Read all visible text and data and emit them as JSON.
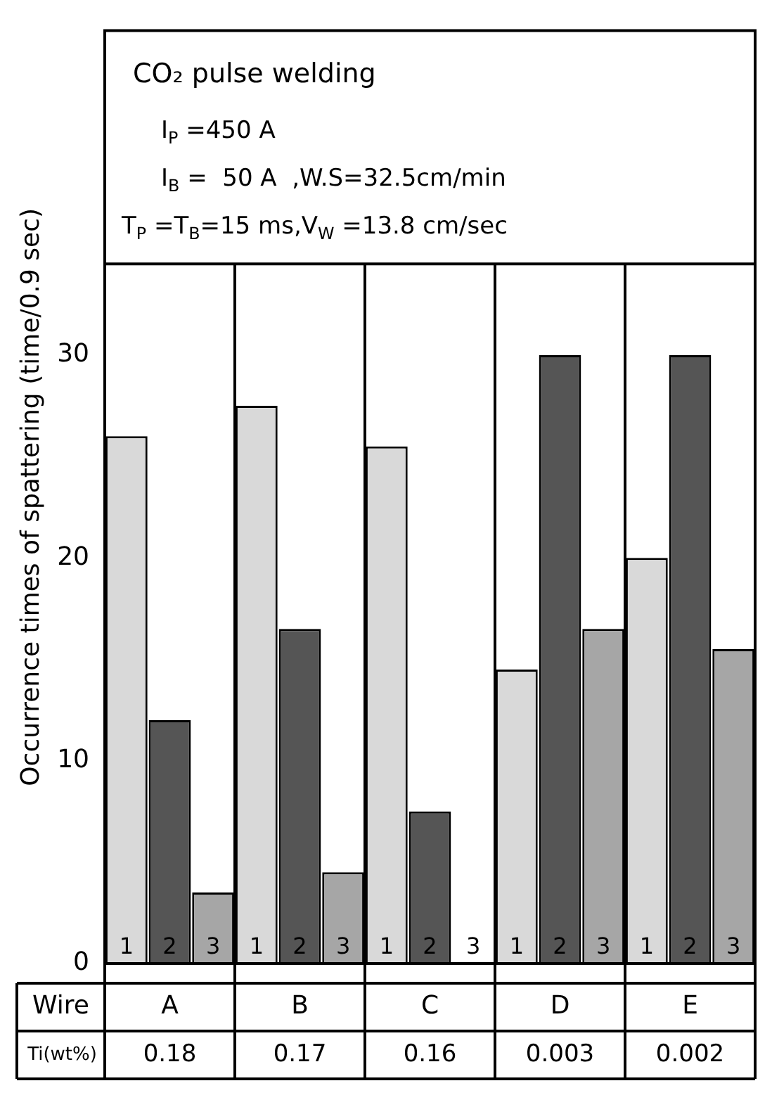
{
  "chart_data": {
    "type": "bar",
    "title": "CO₂ pulse welding",
    "xlabel": "Wire",
    "ylabel": "Occurrence times of spattering (time/0.9 sec)",
    "categories": [
      "A",
      "B",
      "C",
      "D",
      "E"
    ],
    "series": [
      {
        "name": "1",
        "color": "#d9d9d9",
        "values": [
          26,
          27.5,
          25.5,
          14.5,
          20
        ]
      },
      {
        "name": "2",
        "color": "#555555",
        "values": [
          12,
          16.5,
          7.5,
          30,
          30
        ]
      },
      {
        "name": "3",
        "color": "#a6a6a6",
        "values": [
          3.5,
          4.5,
          0,
          16.5,
          15.5
        ]
      }
    ],
    "ylim": [
      0,
      46
    ],
    "yticks": [
      0,
      10,
      20,
      30
    ],
    "grid": false,
    "legend": false,
    "annotations": [
      "I$_{P}$ =450 A",
      "I$_{B}$ =  50 A  ,W.S=32.5cm/min",
      "T$_{P}$ =T$_{B}$=15 ms,V$_{W}$ =13.8 cm/sec",
      "Ti(wt%)",
      "0.18",
      "0.17",
      "0.16",
      "0.003",
      "0.002"
    ]
  }
}
